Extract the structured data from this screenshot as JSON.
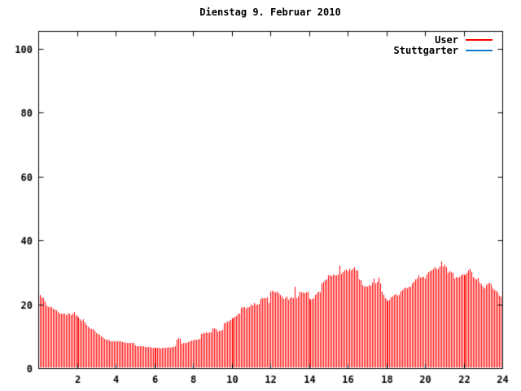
{
  "title": "Dienstag 9. Februar 2010",
  "legend": {
    "items": [
      {
        "label": "User",
        "color": "#ff0000"
      },
      {
        "label": "Stuttgarter",
        "color": "#0a7ad1"
      }
    ]
  },
  "colors": {
    "bar": "#ff0000",
    "axis": "#000000",
    "background": "#ffffff",
    "user_series": "#ff0000",
    "stuttgarter_series": "#0a7ad1"
  },
  "chart_data": {
    "type": "bar",
    "style": "impulses",
    "title": "Dienstag 9. Februar 2010",
    "xlabel": "",
    "ylabel": "",
    "xlim": [
      0,
      24
    ],
    "ylim": [
      0,
      105.5
    ],
    "xticks": [
      2,
      4,
      6,
      8,
      10,
      12,
      14,
      16,
      18,
      20,
      22,
      24
    ],
    "yticks": [
      0,
      20,
      40,
      60,
      80,
      100
    ],
    "grid": false,
    "legend_position": "top-right-inside",
    "x_unit": "hour of day",
    "interval_minutes": 5,
    "series": [
      {
        "name": "User",
        "color": "#ff0000",
        "start_hour": 0,
        "values": [
          24,
          23,
          22.2,
          21.8,
          21,
          19.5,
          19,
          19,
          19,
          18.6,
          18.4,
          18,
          17.5,
          17,
          17,
          17,
          17,
          16.5,
          17,
          17,
          16.5,
          17,
          17.5,
          16.5,
          16.3,
          15.8,
          15.4,
          14.8,
          15.4,
          14.2,
          13.5,
          13,
          12.6,
          12.2,
          12.2,
          11.7,
          11,
          10.6,
          10.4,
          10,
          9.6,
          9.2,
          9,
          8.8,
          8.6,
          8.5,
          8.5,
          8.5,
          8.5,
          8.4,
          8.5,
          8.3,
          8.2,
          8.2,
          8,
          8,
          8,
          7.9,
          7.9,
          7.8,
          7.2,
          7,
          7,
          6.9,
          6.8,
          6.8,
          6.6,
          6.6,
          6.5,
          6.5,
          6.4,
          6.4,
          6.4,
          6.3,
          6.4,
          6.3,
          6.2,
          6.3,
          6.4,
          6.3,
          6.4,
          6.5,
          6.4,
          6.5,
          6.6,
          6.8,
          9,
          9.4,
          9.3,
          7.7,
          7.8,
          7.9,
          8,
          8.2,
          8.5,
          8.6,
          8.7,
          8.8,
          9,
          9,
          9.2,
          10.7,
          10.9,
          11,
          11.1,
          11,
          11.1,
          11.2,
          12.4,
          12.4,
          12.2,
          11.5,
          11.6,
          11.7,
          12,
          13.9,
          14.2,
          14.5,
          14.8,
          15,
          15.5,
          15.8,
          16,
          16.4,
          17,
          17.2,
          18.8,
          19,
          19,
          18.6,
          19,
          19.2,
          20,
          19.6,
          20.5,
          20,
          19.8,
          20.1,
          21.7,
          22,
          21.9,
          21.8,
          22.2,
          20.5,
          24,
          24.2,
          24,
          23.8,
          24,
          23.5,
          23,
          22.5,
          21.7,
          22,
          22.5,
          21.3,
          22,
          22.1,
          21.8,
          25.6,
          22,
          22.3,
          24,
          23.8,
          23.6,
          23.5,
          23.8,
          24,
          21.8,
          21.5,
          21.7,
          22,
          23,
          23.5,
          24,
          23.8,
          26.4,
          27,
          27.5,
          27.8,
          29,
          29,
          28.8,
          29.2,
          29,
          29.1,
          29.4,
          32.1,
          29.5,
          30,
          30.5,
          30.8,
          30.2,
          31,
          30.5,
          31.1,
          31.5,
          30.6,
          30.5,
          27.7,
          27.5,
          26,
          25.5,
          25.8,
          25.5,
          26,
          25.8,
          26.8,
          28.1,
          26.5,
          27,
          28.3,
          26.5,
          23.9,
          23,
          22,
          21.3,
          20.9,
          21.5,
          22.2,
          22.5,
          23,
          23.2,
          22.8,
          23,
          23.9,
          24.5,
          25,
          25.3,
          25,
          25.5,
          25.5,
          26.5,
          27,
          27.7,
          28,
          29,
          28.3,
          28.6,
          28.5,
          28.1,
          29.4,
          30,
          30.2,
          30.6,
          31,
          31.5,
          31.2,
          31.1,
          31.9,
          33.4,
          31.9,
          32.4,
          31.5,
          29.8,
          30.2,
          30,
          29.9,
          28.1,
          28.5,
          28.3,
          28.5,
          29,
          29.2,
          29.4,
          29,
          29.8,
          30.6,
          31.1,
          30,
          28.5,
          28,
          27.7,
          28.2,
          26.8,
          26.2,
          25.5,
          25.1,
          26,
          26.4,
          26.8,
          26.2,
          25,
          24.5,
          24.2,
          23.6,
          22.8,
          22.3
        ]
      },
      {
        "name": "Stuttgarter",
        "color": "#0a7ad1",
        "values": []
      }
    ]
  }
}
